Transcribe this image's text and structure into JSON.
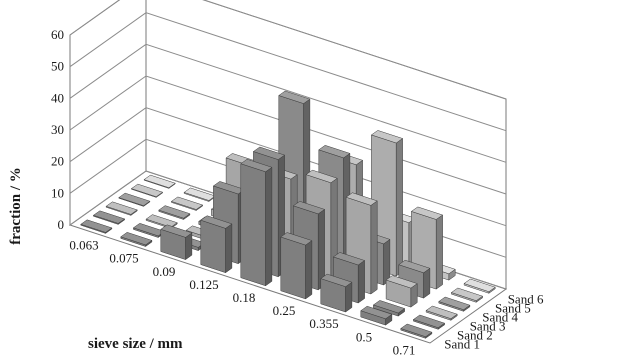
{
  "chart_data": {
    "type": "bar",
    "subtype": "3d-column",
    "x": [
      "0.063",
      "0.075",
      "0.09",
      "0.125",
      "0.18",
      "0.25",
      "0.355",
      "0.5",
      "0.71"
    ],
    "xlabel": "sieve size / mm",
    "ylabel": "fraction / %",
    "zlim": [
      0,
      60
    ],
    "z_ticks": [
      "0",
      "10",
      "20",
      "30",
      "40",
      "50",
      "60"
    ],
    "grid": true,
    "series": [
      {
        "name": "Sand 1",
        "color": "#7f7f7f",
        "values": [
          0.3,
          0.5,
          7,
          14,
          36,
          17,
          8,
          2,
          0.5
        ]
      },
      {
        "name": "Sand 2",
        "color": "#7f7f7f",
        "values": [
          0.3,
          0.5,
          1,
          22,
          37,
          24,
          12,
          1,
          0.5
        ]
      },
      {
        "name": "Sand 3",
        "color": "#a6a6a6",
        "values": [
          0.3,
          0.4,
          1,
          28,
          28,
          31,
          28,
          6,
          0.5
        ]
      },
      {
        "name": "Sand 4",
        "color": "#8a8a8a",
        "values": [
          0.2,
          0.4,
          1,
          8,
          49,
          36,
          13,
          8,
          0.5
        ]
      },
      {
        "name": "Sand 5",
        "color": "#adadad",
        "values": [
          0.2,
          0.3,
          2,
          16,
          11,
          31,
          42,
          22,
          0.5
        ]
      },
      {
        "name": "Sand 6",
        "color": "#c2c2c2",
        "values": [
          0.2,
          0.3,
          0.5,
          1,
          3,
          9,
          14,
          2,
          0.5
        ]
      }
    ]
  }
}
